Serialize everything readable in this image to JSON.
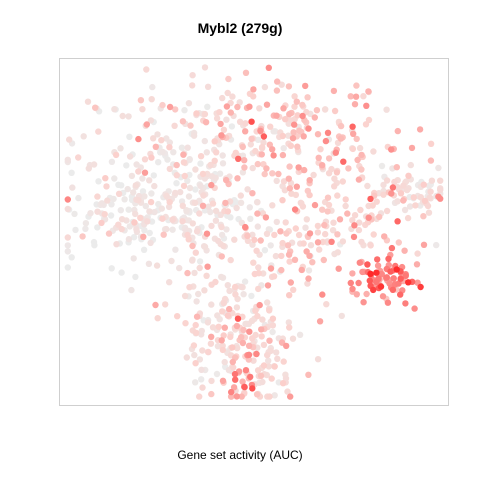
{
  "title": "Mybl2 (279g)",
  "caption": "Gene set activity (AUC)",
  "chart_data": {
    "type": "scatter",
    "title": "Mybl2 (279g)",
    "xlabel": "Gene set activity (AUC)",
    "ylabel": "",
    "axes_shown": false,
    "grid": false,
    "color_scale": {
      "low": "#ebebeb",
      "mid": "#fbd3cf",
      "high": "#ff2a2a"
    },
    "clusters": [
      {
        "name": "top-center-right",
        "cx": 0.62,
        "cy": 0.8,
        "sx": 0.12,
        "sy": 0.08,
        "n": 160,
        "activity": 0.38
      },
      {
        "name": "top-left",
        "cx": 0.3,
        "cy": 0.78,
        "sx": 0.14,
        "sy": 0.08,
        "n": 120,
        "activity": 0.18
      },
      {
        "name": "left-band",
        "cx": 0.18,
        "cy": 0.56,
        "sx": 0.12,
        "sy": 0.08,
        "n": 170,
        "activity": 0.06
      },
      {
        "name": "center-left",
        "cx": 0.38,
        "cy": 0.56,
        "sx": 0.08,
        "sy": 0.1,
        "n": 140,
        "activity": 0.14
      },
      {
        "name": "right-upper",
        "cx": 0.82,
        "cy": 0.6,
        "sx": 0.08,
        "sy": 0.1,
        "n": 90,
        "activity": 0.28
      },
      {
        "name": "far-right-arm",
        "cx": 0.94,
        "cy": 0.62,
        "sx": 0.04,
        "sy": 0.03,
        "n": 40,
        "activity": 0.12
      },
      {
        "name": "center",
        "cx": 0.62,
        "cy": 0.5,
        "sx": 0.1,
        "sy": 0.1,
        "n": 120,
        "activity": 0.32
      },
      {
        "name": "right-lower-hotspot",
        "cx": 0.83,
        "cy": 0.36,
        "sx": 0.05,
        "sy": 0.04,
        "n": 80,
        "activity": 0.62
      },
      {
        "name": "bottom-center",
        "cx": 0.45,
        "cy": 0.22,
        "sx": 0.08,
        "sy": 0.12,
        "n": 170,
        "activity": 0.22
      },
      {
        "name": "bottom-right-of-center",
        "cx": 0.52,
        "cy": 0.12,
        "sx": 0.05,
        "sy": 0.08,
        "n": 60,
        "activity": 0.3
      },
      {
        "name": "bottom-spot",
        "cx": 0.47,
        "cy": 0.04,
        "sx": 0.02,
        "sy": 0.02,
        "n": 12,
        "activity": 0.7
      }
    ],
    "xlim": [
      0,
      1
    ],
    "ylim": [
      0,
      1
    ]
  }
}
